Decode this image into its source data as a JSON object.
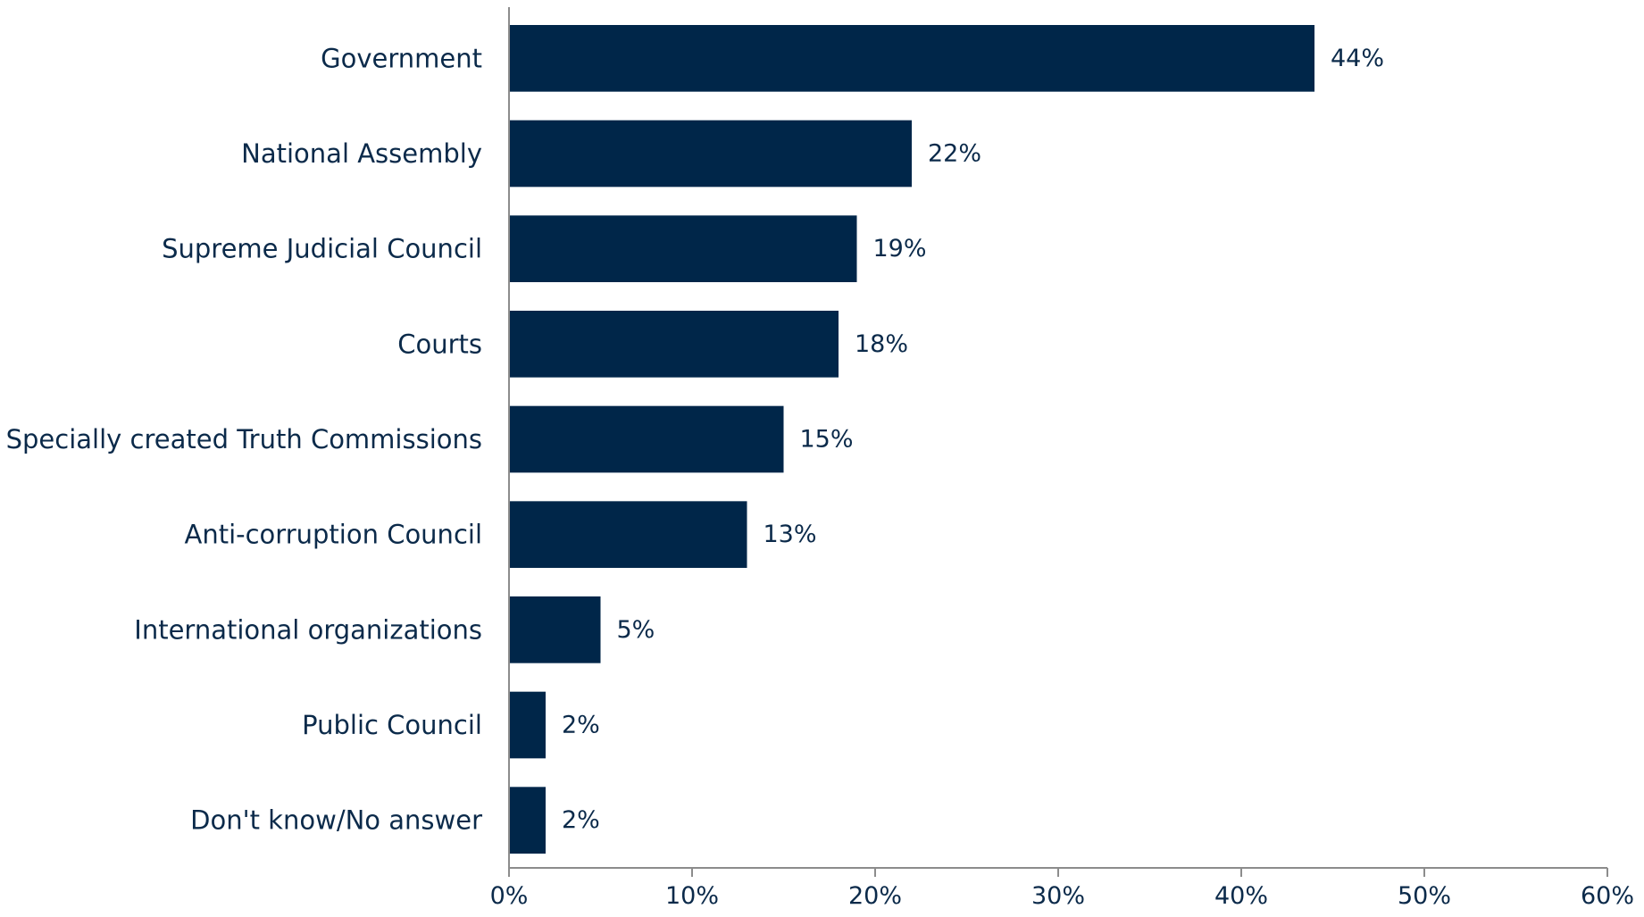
{
  "chart_data": {
    "type": "bar",
    "orientation": "horizontal",
    "categories": [
      "Government",
      "National Assembly",
      "Supreme Judicial Council",
      "Courts",
      "Specially created Truth Commissions",
      "Anti-corruption Council",
      "International organizations",
      "Public Council",
      "Don't know/No answer"
    ],
    "values": [
      44,
      22,
      19,
      18,
      15,
      13,
      5,
      2,
      2
    ],
    "value_labels": [
      "44%",
      "22%",
      "19%",
      "18%",
      "15%",
      "13%",
      "5%",
      "2%",
      "2%"
    ],
    "xlim": [
      0,
      60
    ],
    "x_ticks": [
      0,
      10,
      20,
      30,
      40,
      50,
      60
    ],
    "x_tick_labels": [
      "0%",
      "10%",
      "20%",
      "30%",
      "40%",
      "50%",
      "60%"
    ],
    "title": "",
    "xlabel": "",
    "ylabel": "",
    "grid": false,
    "legend": "none",
    "bar_color": "#002649",
    "text_color": "#0b2a4a",
    "axis_color": "#8c8c8c"
  }
}
